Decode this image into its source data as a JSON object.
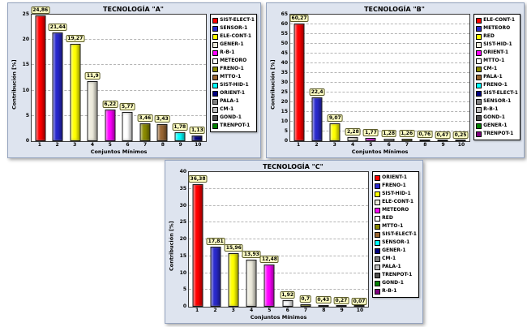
{
  "colors": {
    "series": [
      "#FF0000",
      "#2929CC",
      "#FFFF00",
      "#EDEBDD",
      "#FF00FF",
      "#FFFFFF",
      "#8A8A00",
      "#996633",
      "#00FFFF",
      "#000080",
      "#808080",
      "#C0C0C0",
      "#505050",
      "#008000",
      "#800080"
    ],
    "panel_bg": "#DEE4EF",
    "plot_bg": "#FFFFFF",
    "value_label_bg": "#FFFFC5",
    "gridline": "#B5B5B5"
  },
  "chart_data": [
    {
      "type": "bar",
      "title": "TECNOLOGÍA \"A\"",
      "xlabel": "Conjuntos Mínimos",
      "ylabel": "Contribución [%]",
      "categories": [
        "1",
        "2",
        "3",
        "4",
        "5",
        "6",
        "7",
        "8",
        "9",
        "10"
      ],
      "values": [
        24.86,
        21.44,
        19.27,
        11.9,
        6.22,
        5.77,
        3.46,
        3.43,
        1.78,
        1.13
      ],
      "value_labels": [
        "24,86",
        "21,44",
        "19,27",
        "11,9",
        "6,22",
        "5,77",
        "3,46",
        "3,43",
        "1,78",
        "1,13"
      ],
      "ylim": [
        0,
        25
      ],
      "ytick_step": 5,
      "grid": "dashed-horizontal",
      "legend_position": "right",
      "legend": [
        "SIST-ELECT-1",
        "SENSOR-1",
        "ELE-CONT-1",
        "GENER-1",
        "R-B-1",
        "METEORO",
        "FRENO-1",
        "MTTO-1",
        "SIST-HID-1",
        "ORIENT-1",
        "PALA-1",
        "CM-1",
        "GOND-1",
        "TRENPOT-1"
      ]
    },
    {
      "type": "bar",
      "title": "TECNOLOGÍA \"B\"",
      "xlabel": "Conjuntos Mínimos",
      "ylabel": "Contribución [%]",
      "categories": [
        "1",
        "2",
        "3",
        "4",
        "5",
        "6",
        "7",
        "8",
        "9",
        "10"
      ],
      "values": [
        60.27,
        22.4,
        9.07,
        2.28,
        1.77,
        1.28,
        1.26,
        0.76,
        0.47,
        0.25
      ],
      "value_labels": [
        "60,27",
        "22,4",
        "9,07",
        "2,28",
        "1,77",
        "1,28",
        "1,26",
        "0,76",
        "0,47",
        "0,25"
      ],
      "ylim": [
        0,
        65
      ],
      "ytick_step": 5,
      "grid": "dashed-horizontal",
      "legend_position": "right",
      "legend": [
        "ELE-CONT-1",
        "METEORO",
        "RED",
        "SIST-HID-1",
        "ORIENT-1",
        "MTTO-1",
        "CM-1",
        "PALA-1",
        "FRENO-1",
        "SIST-ELECT-1",
        "SENSOR-1",
        "R-B-1",
        "GOND-1",
        "GENER-1",
        "TRENPOT-1"
      ]
    },
    {
      "type": "bar",
      "title": "TECNOLOGÍA \"C\"",
      "xlabel": "Conjuntos Mínimos",
      "ylabel": "Contribución [%]",
      "categories": [
        "1",
        "2",
        "3",
        "4",
        "5",
        "6",
        "7",
        "8",
        "9",
        "10"
      ],
      "values": [
        36.38,
        17.81,
        15.96,
        13.93,
        12.48,
        1.92,
        0.7,
        0.43,
        0.27,
        0.07
      ],
      "value_labels": [
        "36,38",
        "17,81",
        "15,96",
        "13,93",
        "12,48",
        "1,92",
        "0,7",
        "0,43",
        "0,27",
        "0,07"
      ],
      "ylim": [
        0,
        40
      ],
      "ytick_step": 5,
      "grid": "dashed-horizontal",
      "legend_position": "right",
      "legend": [
        "ORIENT-1",
        "FRENO-1",
        "SIST-HID-1",
        "ELE-CONT-1",
        "METEORO",
        "RED",
        "MTTO-1",
        "SIST-ELECT-1",
        "SENSOR-1",
        "GENER-1",
        "CM-1",
        "PALA-1",
        "TRENPOT-1",
        "GOND-1",
        "R-B-1"
      ]
    }
  ]
}
